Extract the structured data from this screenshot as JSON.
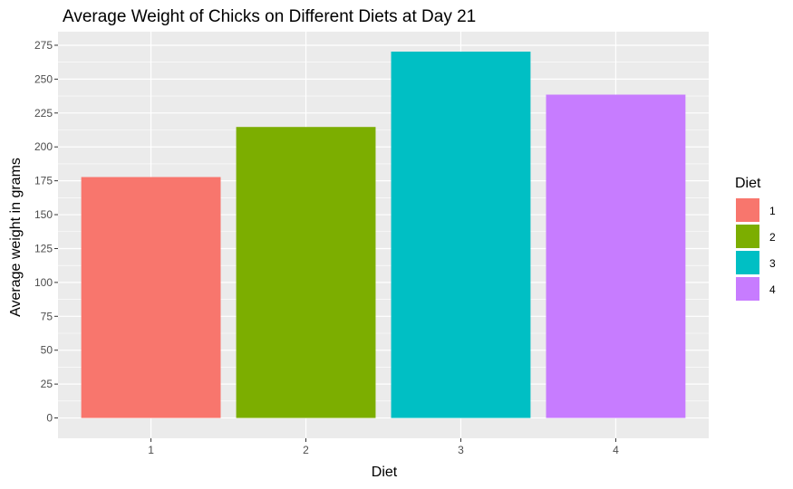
{
  "chart_data": {
    "type": "bar",
    "title": "Average Weight of Chicks on Different Diets at Day 21",
    "xlabel": "Diet",
    "ylabel": "Average weight in grams",
    "categories": [
      "1",
      "2",
      "3",
      "4"
    ],
    "values": [
      177.75,
      214.7,
      270.3,
      238.56
    ],
    "colors": [
      "#F8766D",
      "#7CAE00",
      "#00BFC4",
      "#C77CFF"
    ],
    "ylim": [
      -15,
      285
    ],
    "yticks": [
      0,
      25,
      50,
      75,
      100,
      125,
      150,
      175,
      200,
      225,
      250,
      275
    ],
    "grid": true,
    "panel_background": "#EBEBEB",
    "legend": {
      "title": "Diet",
      "position": "right",
      "entries": [
        "1",
        "2",
        "3",
        "4"
      ]
    }
  }
}
